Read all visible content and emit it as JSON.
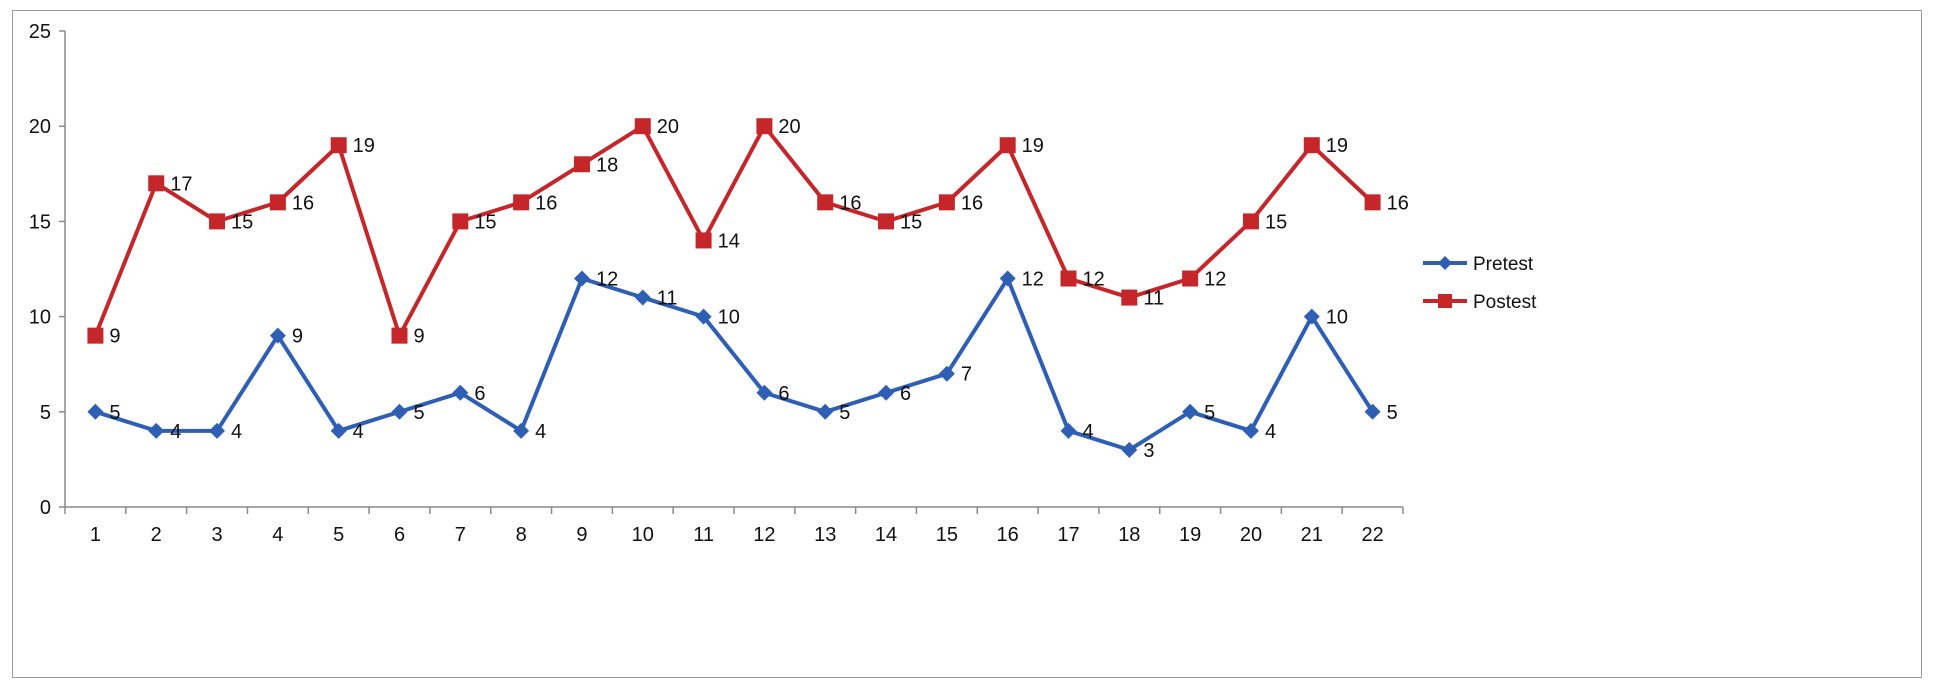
{
  "chart_data": {
    "type": "line",
    "title": "",
    "xlabel": "",
    "ylabel": "",
    "categories": [
      "1",
      "2",
      "3",
      "4",
      "5",
      "6",
      "7",
      "8",
      "9",
      "10",
      "11",
      "12",
      "13",
      "14",
      "15",
      "16",
      "17",
      "18",
      "19",
      "20",
      "21",
      "22"
    ],
    "ylim": [
      0,
      25
    ],
    "yticks": [
      0,
      5,
      10,
      15,
      20,
      25
    ],
    "grid": false,
    "legend_position": "right",
    "data_labels": true,
    "series": [
      {
        "name": "Pretest",
        "color": "#2e5fb5",
        "marker": "diamond",
        "values": [
          5,
          4,
          4,
          9,
          4,
          5,
          6,
          4,
          12,
          11,
          10,
          6,
          5,
          6,
          7,
          12,
          4,
          3,
          5,
          4,
          10,
          5
        ]
      },
      {
        "name": "Postest",
        "color": "#c4262a",
        "marker": "square",
        "values": [
          9,
          17,
          15,
          16,
          19,
          9,
          15,
          16,
          18,
          20,
          14,
          20,
          16,
          15,
          16,
          19,
          12,
          11,
          12,
          15,
          19,
          16
        ]
      }
    ]
  }
}
